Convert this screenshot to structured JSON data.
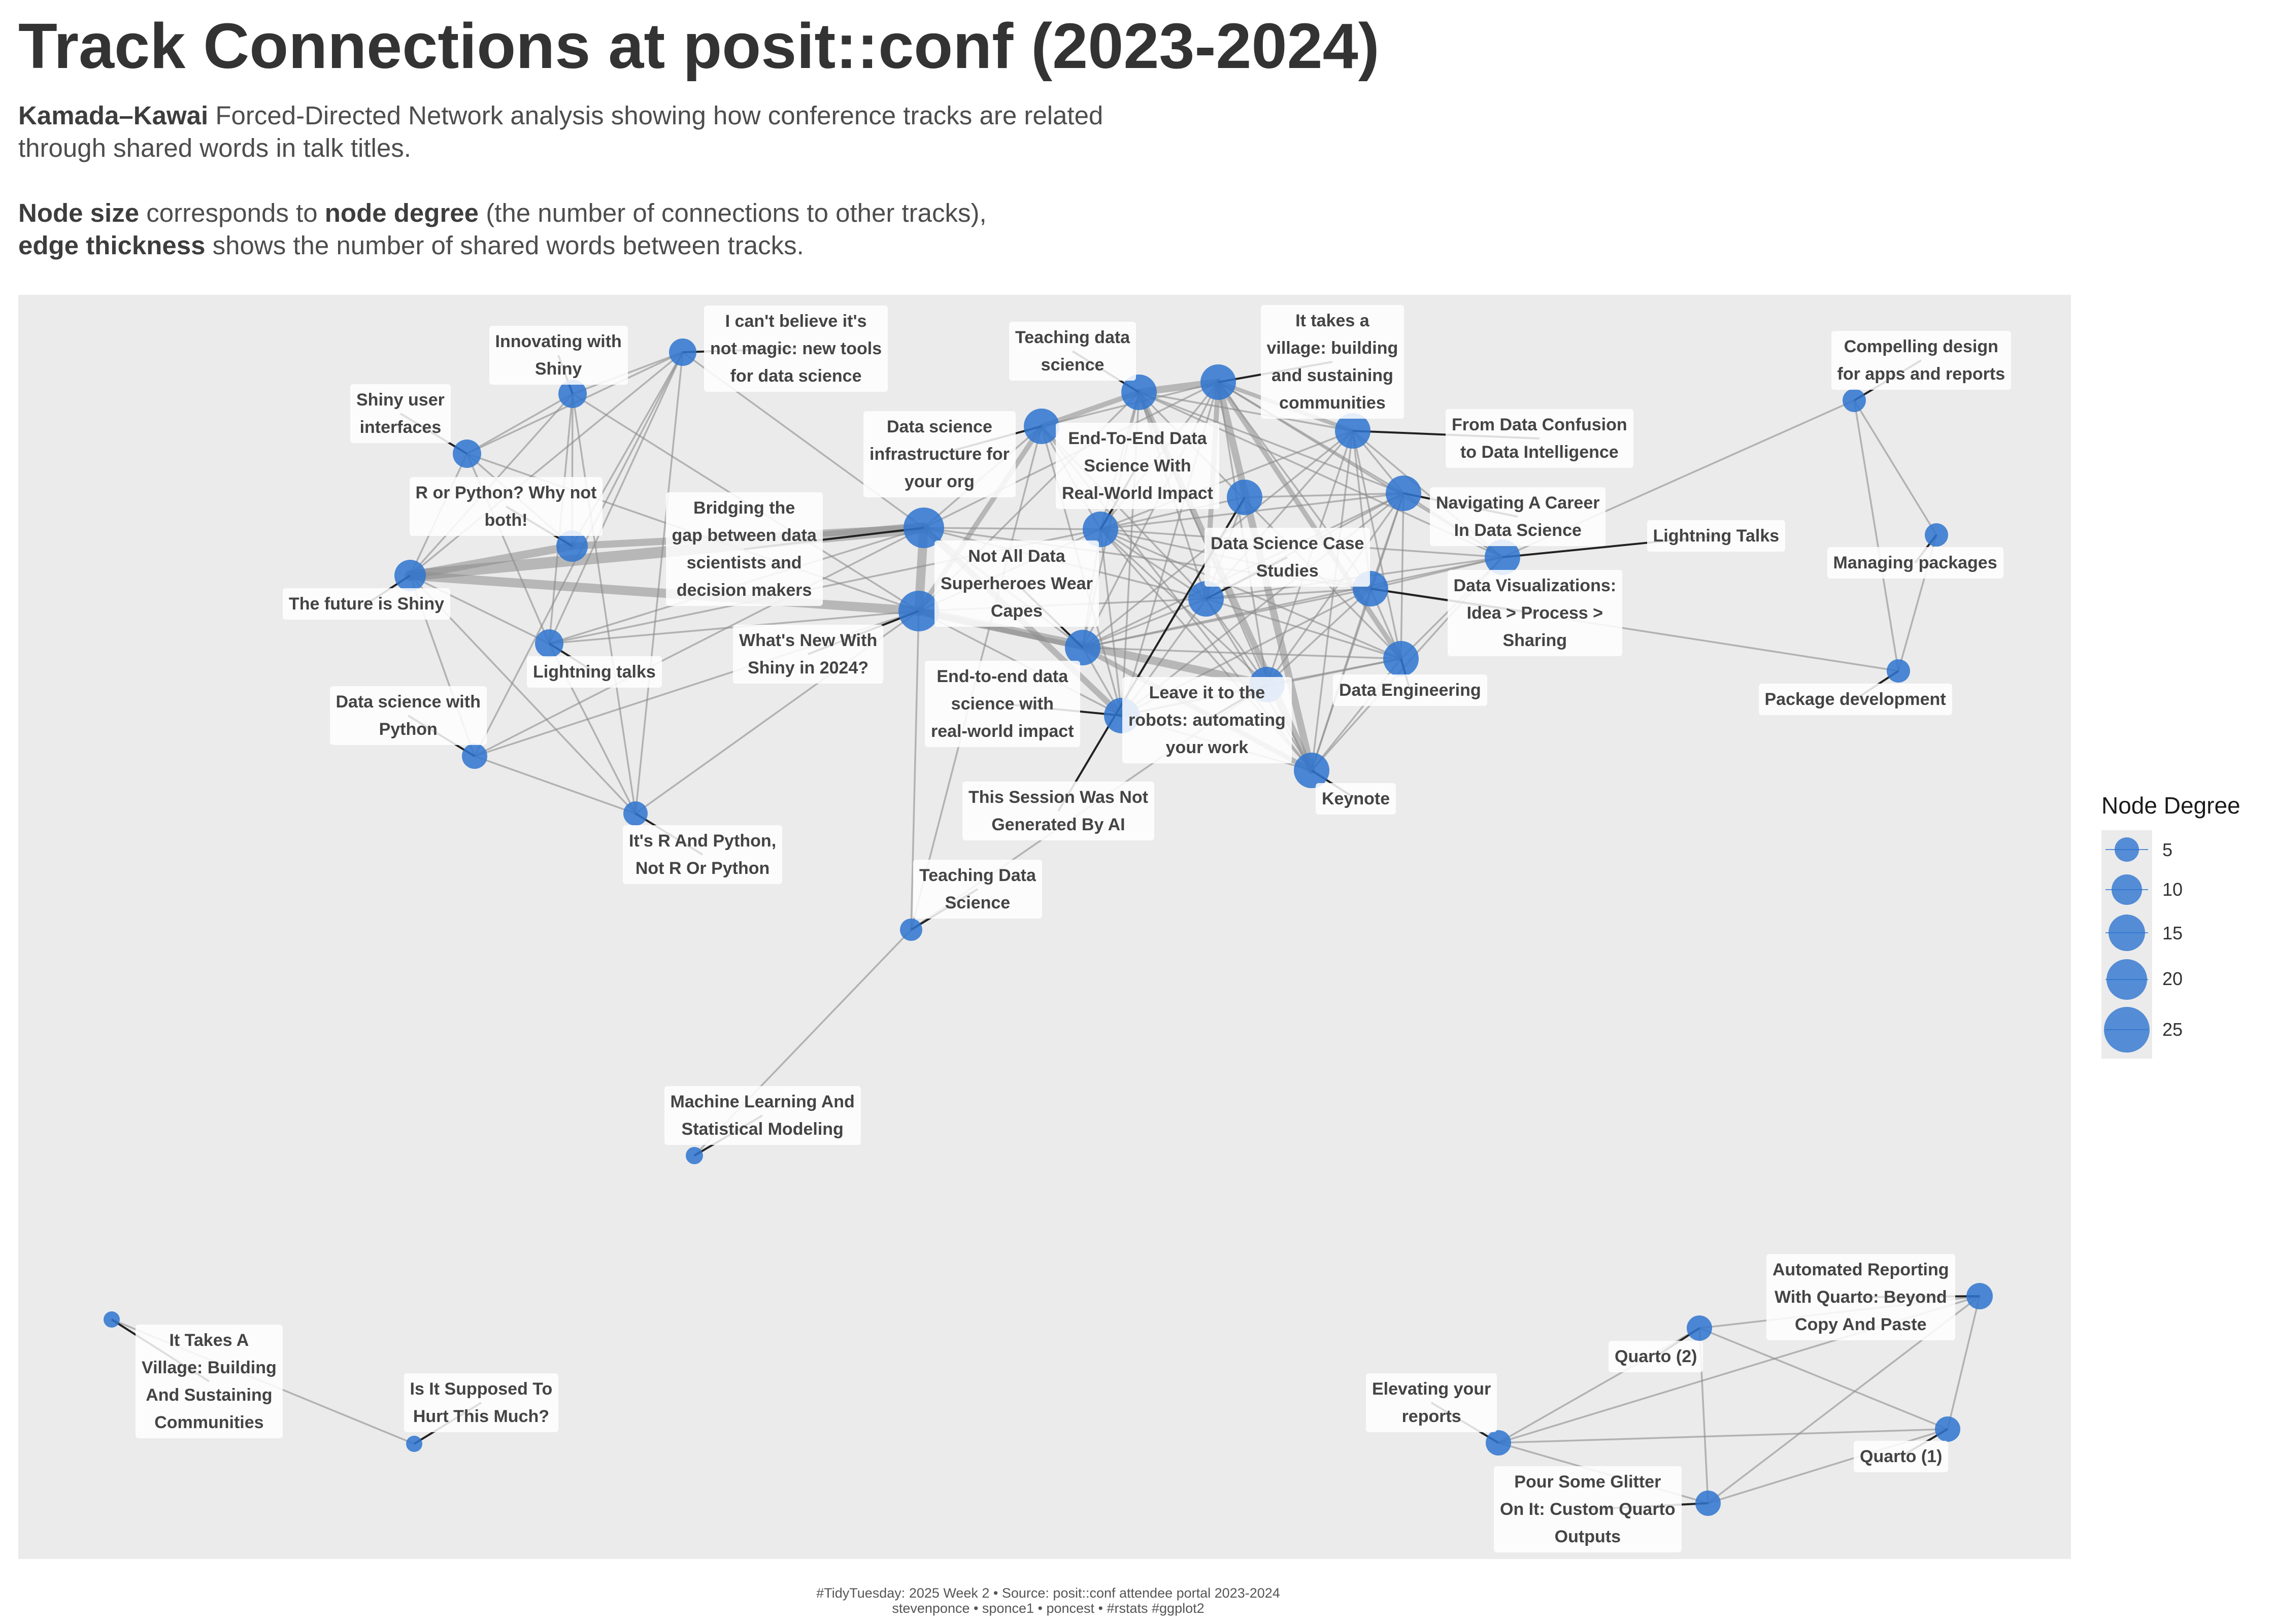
{
  "title": "Track Connections at posit::conf (2023-2024)",
  "subtitle": {
    "line1_bold": "Kamada–Kawai",
    "line1_rest": " Forced-Directed Network analysis showing how conference tracks are related",
    "line2": "through shared words in talk titles.",
    "line3_bold1": "Node size",
    "line3_mid": " corresponds to ",
    "line3_bold2": "node degree",
    "line3_rest": " (the number of connections to other tracks),",
    "line4_bold": "edge thickness",
    "line4_rest": " shows the number of shared words between tracks."
  },
  "legend": {
    "title": "Node Degree",
    "keys": [
      "5",
      "10",
      "15",
      "20",
      "25"
    ]
  },
  "caption": {
    "line1": "#TidyTuesday: 2025 Week 2 • Source: posit::conf attendee portal 2023-2024",
    "line2": " stevenponce •  sponce1 •  poncest • #rstats #ggplot2"
  },
  "colors": {
    "node": "#2e74cf",
    "edge": "#8c8c8c",
    "panel": "#ebebeb"
  },
  "nodes": [
    {
      "id": "innovating-shiny",
      "label": "Innovating with\nShiny"
    },
    {
      "id": "not-magic",
      "label": "I can't believe it's\nnot magic: new tools\nfor data science"
    },
    {
      "id": "shiny-ui",
      "label": "Shiny user\ninterfaces"
    },
    {
      "id": "r-or-python",
      "label": "R or Python? Why not\nboth!"
    },
    {
      "id": "future-shiny",
      "label": "The future is Shiny"
    },
    {
      "id": "lightning-talks-lc",
      "label": "Lightning talks"
    },
    {
      "id": "ds-python",
      "label": "Data science with\nPython"
    },
    {
      "id": "r-and-python",
      "label": "It's R And Python,\nNot R Or Python"
    },
    {
      "id": "bridging-gap",
      "label": "Bridging the\ngap between data\nscientists and\ndecision makers"
    },
    {
      "id": "whats-new-shiny",
      "label": "What's New With\nShiny in 2024?"
    },
    {
      "id": "ds-infra",
      "label": "Data science\ninfrastructure for\nyour org"
    },
    {
      "id": "teaching-ds-lower",
      "label": "Teaching data\nscience"
    },
    {
      "id": "village-lower",
      "label": "It takes a\nvillage: building\nand sustaining\ncommunities"
    },
    {
      "id": "e2e-title",
      "label": "End-To-End Data\nScience With\nReal-World Impact"
    },
    {
      "id": "not-all-data",
      "label": "Not All Data\nSuperheroes Wear\nCapes"
    },
    {
      "id": "e2e-lower",
      "label": "End-to-end data\nscience with\nreal-world impact"
    },
    {
      "id": "ds-case",
      "label": "Data Science Case\nStudies"
    },
    {
      "id": "confusion",
      "label": "From Data Confusion\nto Data Intelligence"
    },
    {
      "id": "career",
      "label": "Navigating A Career\nIn Data Science"
    },
    {
      "id": "lightning-title",
      "label": "Lightning Talks"
    },
    {
      "id": "dataviz",
      "label": "Data Visualizations:\nIdea > Process >\nSharing"
    },
    {
      "id": "data-eng",
      "label": "Data Engineering"
    },
    {
      "id": "robots",
      "label": "Leave it to the\nrobots: automating\nyour work"
    },
    {
      "id": "keynote",
      "label": "Keynote"
    },
    {
      "id": "not-generated",
      "label": "This Session Was Not\nGenerated By AI"
    },
    {
      "id": "teaching-ds-title",
      "label": "Teaching Data\nScience"
    },
    {
      "id": "ml-stats",
      "label": "Machine Learning And\nStatistical Modeling"
    },
    {
      "id": "compelling",
      "label": "Compelling design\nfor apps and reports"
    },
    {
      "id": "managing",
      "label": "Managing packages"
    },
    {
      "id": "package-dev",
      "label": "Package development"
    },
    {
      "id": "village-title",
      "label": "It Takes A\nVillage: Building\nAnd Sustaining\nCommunities"
    },
    {
      "id": "hurt",
      "label": "Is It Supposed To\nHurt This Much?"
    },
    {
      "id": "automated",
      "label": "Automated Reporting\nWith Quarto: Beyond\nCopy And Paste"
    },
    {
      "id": "quarto2",
      "label": "Quarto (2)"
    },
    {
      "id": "elevating",
      "label": "Elevating your\nreports"
    },
    {
      "id": "quarto1",
      "label": "Quarto (1)"
    },
    {
      "id": "glitter",
      "label": "Pour Some Glitter\nOn It: Custom Quarto\nOutputs"
    }
  ]
}
